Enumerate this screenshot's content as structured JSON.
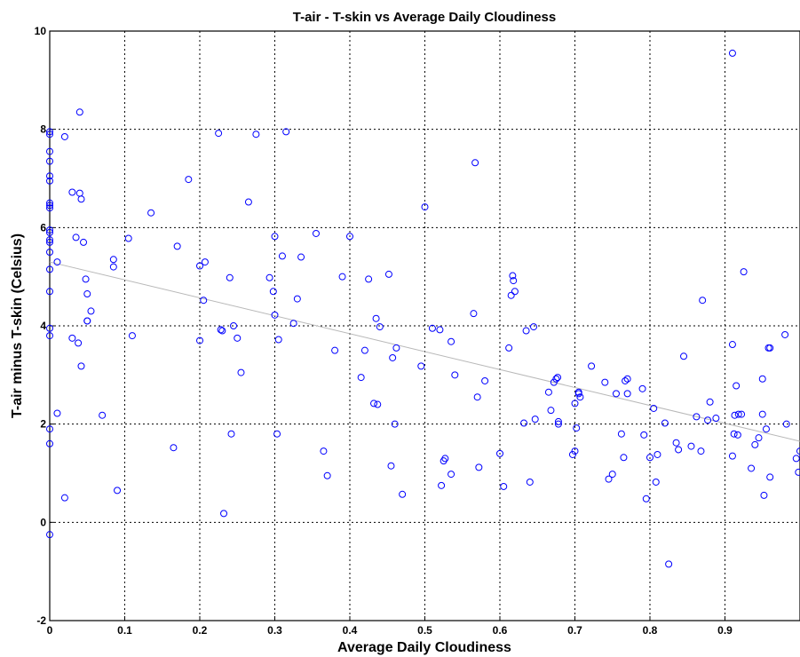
{
  "chart_data": {
    "type": "scatter",
    "title": "T-air - T-skin vs Average Daily Cloudiness",
    "xlabel": "Average Daily Cloudiness",
    "ylabel": "T-air minus T-skin (Celsius)",
    "xlim": [
      0,
      1
    ],
    "ylim": [
      -2,
      10
    ],
    "xticks": [
      0,
      0.1,
      0.2,
      0.3,
      0.4,
      0.5,
      0.6,
      0.7,
      0.8,
      0.9
    ],
    "xtick_labels": [
      "0",
      "0.1",
      "0.2",
      "0.3",
      "0.4",
      "0.5",
      "0.6",
      "0.7",
      "0.8",
      "0.9"
    ],
    "yticks": [
      -2,
      0,
      2,
      4,
      6,
      8,
      10
    ],
    "ytick_labels": [
      "-2",
      "0",
      "2",
      "4",
      "6",
      "8",
      "10"
    ],
    "grid": true,
    "colors": {
      "points": "#0000ff",
      "trend": "#b8b8b8"
    },
    "trend_line": {
      "x": [
        0,
        1
      ],
      "y": [
        5.3,
        1.65
      ]
    },
    "x": [
      0,
      0,
      0,
      0,
      0,
      0,
      0,
      0,
      0,
      0,
      0,
      0,
      0,
      0,
      0,
      0,
      0,
      0,
      0,
      0,
      0,
      0.01,
      0.01,
      0.02,
      0.02,
      0.03,
      0.03,
      0.035,
      0.038,
      0.04,
      0.04,
      0.042,
      0.042,
      0.045,
      0.048,
      0.05,
      0.05,
      0.05,
      0.055,
      0.07,
      0.085,
      0.085,
      0.09,
      0.105,
      0.11,
      0.135,
      0.165,
      0.17,
      0.185,
      0.2,
      0.2,
      0.205,
      0.207,
      0.225,
      0.228,
      0.23,
      0.232,
      0.24,
      0.242,
      0.245,
      0.25,
      0.255,
      0.265,
      0.275,
      0.293,
      0.298,
      0.3,
      0.3,
      0.303,
      0.305,
      0.31,
      0.315,
      0.325,
      0.33,
      0.335,
      0.355,
      0.365,
      0.37,
      0.38,
      0.39,
      0.4,
      0.415,
      0.42,
      0.425,
      0.432,
      0.435,
      0.437,
      0.44,
      0.452,
      0.455,
      0.457,
      0.46,
      0.462,
      0.47,
      0.495,
      0.5,
      0.51,
      0.52,
      0.522,
      0.525,
      0.527,
      0.535,
      0.535,
      0.54,
      0.565,
      0.567,
      0.57,
      0.572,
      0.58,
      0.6,
      0.605,
      0.612,
      0.615,
      0.617,
      0.618,
      0.62,
      0.632,
      0.635,
      0.64,
      0.645,
      0.647,
      0.665,
      0.668,
      0.672,
      0.675,
      0.677,
      0.678,
      0.678,
      0.697,
      0.7,
      0.7,
      0.702,
      0.705,
      0.705,
      0.707,
      0.722,
      0.74,
      0.745,
      0.75,
      0.755,
      0.762,
      0.765,
      0.767,
      0.77,
      0.77,
      0.79,
      0.792,
      0.795,
      0.8,
      0.805,
      0.808,
      0.81,
      0.82,
      0.825,
      0.835,
      0.838,
      0.845,
      0.855,
      0.862,
      0.868,
      0.87,
      0.877,
      0.88,
      0.888,
      0.91,
      0.91,
      0.91,
      0.912,
      0.913,
      0.915,
      0.917,
      0.918,
      0.922,
      0.925,
      0.935,
      0.94,
      0.945,
      0.95,
      0.95,
      0.952,
      0.955,
      0.958,
      0.96,
      0.96,
      0.98,
      0.982,
      0.995,
      0.998,
      1.0
    ],
    "y": [
      7.95,
      7.9,
      7.55,
      7.35,
      7.05,
      6.95,
      6.5,
      6.45,
      6.4,
      5.95,
      5.9,
      5.75,
      5.7,
      5.5,
      5.15,
      4.7,
      3.95,
      3.8,
      1.9,
      1.6,
      -0.25,
      5.3,
      2.22,
      7.85,
      0.5,
      6.72,
      3.75,
      5.8,
      3.65,
      8.35,
      6.7,
      6.58,
      3.18,
      5.7,
      4.95,
      4.65,
      4.1,
      4.1,
      4.3,
      2.18,
      5.35,
      5.2,
      0.65,
      5.78,
      3.8,
      6.3,
      1.52,
      5.62,
      6.98,
      5.22,
      3.7,
      4.52,
      5.3,
      7.92,
      3.92,
      3.9,
      0.18,
      4.98,
      1.8,
      4.0,
      3.75,
      3.05,
      6.52,
      7.9,
      4.98,
      4.7,
      5.82,
      4.22,
      1.8,
      3.72,
      5.42,
      7.95,
      4.05,
      4.55,
      5.4,
      5.88,
      1.45,
      0.95,
      3.5,
      5.0,
      5.82,
      2.95,
      3.5,
      4.95,
      2.42,
      4.15,
      2.4,
      3.98,
      5.05,
      1.15,
      3.35,
      2.0,
      3.55,
      0.57,
      3.18,
      6.42,
      3.95,
      3.92,
      0.75,
      1.25,
      1.3,
      3.68,
      0.98,
      3.0,
      4.25,
      7.32,
      2.55,
      1.12,
      2.88,
      1.4,
      0.73,
      3.55,
      4.62,
      5.02,
      4.92,
      4.7,
      2.02,
      3.9,
      0.82,
      3.98,
      2.1,
      2.65,
      2.28,
      2.85,
      2.92,
      2.95,
      2.0,
      2.05,
      1.38,
      2.42,
      1.45,
      1.92,
      2.65,
      2.62,
      2.55,
      3.18,
      2.85,
      0.88,
      0.98,
      2.62,
      1.8,
      1.32,
      2.88,
      2.62,
      2.92,
      2.72,
      1.78,
      0.48,
      1.32,
      2.32,
      0.82,
      1.38,
      2.02,
      -0.85,
      1.62,
      1.48,
      3.38,
      1.55,
      2.15,
      1.45,
      4.52,
      2.08,
      2.45,
      2.12,
      9.55,
      3.62,
      1.35,
      1.8,
      2.18,
      2.78,
      1.78,
      2.2,
      2.2,
      5.1,
      1.1,
      1.58,
      1.72,
      2.92,
      2.2,
      0.55,
      1.9,
      3.55,
      0.92,
      3.55,
      3.82,
      2.0,
      1.3,
      1.02,
      1.45
    ]
  }
}
